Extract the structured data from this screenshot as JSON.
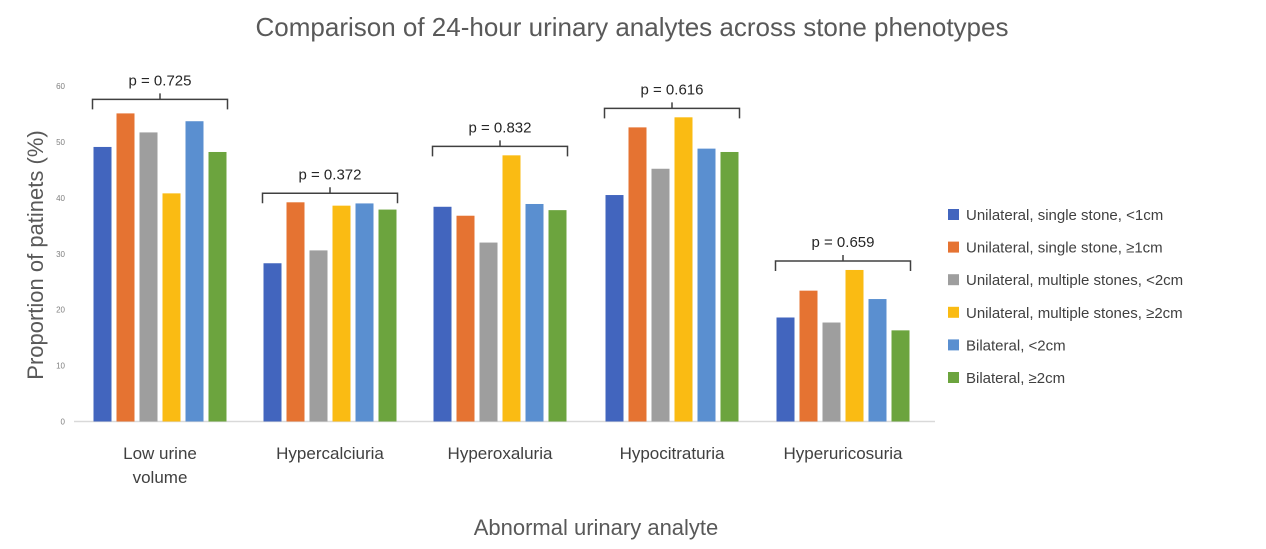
{
  "chart_data": {
    "type": "bar",
    "title": "Comparison of 24-hour urinary analytes across stone phenotypes",
    "xlabel": "Abnormal urinary analyte",
    "ylabel": "Proportion of patinets (%)",
    "ylim": [
      0,
      60
    ],
    "yticks": [
      "0",
      "10",
      "20",
      "30",
      "40",
      "50",
      "60"
    ],
    "grid": false,
    "legend_position": "right",
    "categories": [
      [
        "Low urine",
        "volume"
      ],
      [
        "Hypercalciuria"
      ],
      [
        "Hyperoxaluria"
      ],
      [
        "Hypocitraturia"
      ],
      [
        "Hyperuricosuria"
      ]
    ],
    "p_values": [
      "p = 0.725",
      "p = 0.372",
      "p = 0.832",
      "p = 0.616",
      "p = 0.659"
    ],
    "series": [
      {
        "name": "Unilateral, single stone, <1cm",
        "color": "#4265BE",
        "values": [
          49.1,
          28.3,
          38.4,
          40.5,
          18.6
        ]
      },
      {
        "name": "Unilateral, single stone, ≥1cm",
        "color": "#E57332",
        "values": [
          55.1,
          39.2,
          36.8,
          52.6,
          23.4
        ]
      },
      {
        "name": "Unilateral, multiple stones, <2cm",
        "color": "#9E9E9E",
        "values": [
          51.7,
          30.6,
          32.0,
          45.2,
          17.7
        ]
      },
      {
        "name": "Unilateral, multiple stones, ≥2cm",
        "color": "#FABB13",
        "values": [
          40.8,
          38.6,
          47.6,
          54.4,
          27.1
        ]
      },
      {
        "name": "Bilateral, <2cm",
        "color": "#5A8FD0",
        "values": [
          53.7,
          39.0,
          38.9,
          48.8,
          21.9
        ]
      },
      {
        "name": "Bilateral, ≥2cm",
        "color": "#6CA43E",
        "values": [
          48.2,
          37.9,
          37.8,
          48.2,
          16.3
        ]
      }
    ]
  }
}
